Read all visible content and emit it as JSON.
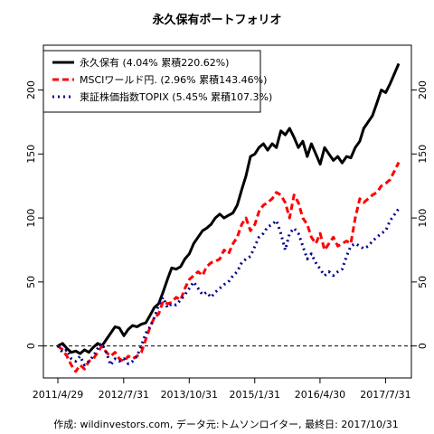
{
  "chart_data": {
    "type": "line",
    "title": "永久保有ポートフォリオ",
    "caption": "作成: wildinvestors.com, データ元:トムソンロイター, 最終日: 2017/10/31",
    "xlabel": "",
    "ylabel": "",
    "xlim": [
      "2011-04-29",
      "2017-10-31"
    ],
    "ylim": [
      -25,
      235
    ],
    "y_ticks": [
      0,
      50,
      100,
      150,
      200
    ],
    "y_tick_labels": [
      "0",
      "50",
      "100",
      "150",
      "200"
    ],
    "x_ticks": [
      "2011-04-29",
      "2012-07-31",
      "2013-10-31",
      "2015-01-31",
      "2016-04-30",
      "2017-07-31"
    ],
    "x_tick_labels": [
      "2011/4/29",
      "2012/7/31",
      "2013/10/31",
      "2015/1/31",
      "2016/4/30",
      "2017/7/31"
    ],
    "reference_line": 0,
    "grid": false,
    "legend_position": "top-left",
    "series": [
      {
        "name": "永久保有 (4.04% 累積220.62%)",
        "color": "#000000",
        "style": "solid",
        "points": [
          [
            "2011-04-29",
            0
          ],
          [
            "2011-06-01",
            2
          ],
          [
            "2011-07-01",
            -2
          ],
          [
            "2011-08-01",
            -5
          ],
          [
            "2011-09-01",
            -4
          ],
          [
            "2011-10-01",
            -6
          ],
          [
            "2011-11-01",
            -3
          ],
          [
            "2011-12-01",
            -5
          ],
          [
            "2012-01-01",
            -1
          ],
          [
            "2012-02-01",
            2
          ],
          [
            "2012-03-01",
            0
          ],
          [
            "2012-04-01",
            5
          ],
          [
            "2012-05-01",
            10
          ],
          [
            "2012-06-01",
            15
          ],
          [
            "2012-07-01",
            14
          ],
          [
            "2012-08-01",
            8
          ],
          [
            "2012-09-01",
            13
          ],
          [
            "2012-10-01",
            16
          ],
          [
            "2012-11-01",
            15
          ],
          [
            "2012-12-01",
            17
          ],
          [
            "2013-01-01",
            18
          ],
          [
            "2013-02-01",
            24
          ],
          [
            "2013-03-01",
            30
          ],
          [
            "2013-04-01",
            33
          ],
          [
            "2013-05-01",
            42
          ],
          [
            "2013-06-01",
            52
          ],
          [
            "2013-07-01",
            61
          ],
          [
            "2013-08-01",
            60
          ],
          [
            "2013-09-01",
            62
          ],
          [
            "2013-10-01",
            68
          ],
          [
            "2013-11-01",
            72
          ],
          [
            "2013-12-01",
            80
          ],
          [
            "2014-01-01",
            85
          ],
          [
            "2014-02-01",
            90
          ],
          [
            "2014-03-01",
            92
          ],
          [
            "2014-04-01",
            95
          ],
          [
            "2014-05-01",
            100
          ],
          [
            "2014-06-01",
            103
          ],
          [
            "2014-07-01",
            100
          ],
          [
            "2014-08-01",
            102
          ],
          [
            "2014-09-01",
            104
          ],
          [
            "2014-10-01",
            110
          ],
          [
            "2014-11-01",
            122
          ],
          [
            "2014-12-01",
            133
          ],
          [
            "2015-01-01",
            148
          ],
          [
            "2015-02-01",
            150
          ],
          [
            "2015-03-01",
            155
          ],
          [
            "2015-04-01",
            158
          ],
          [
            "2015-05-01",
            153
          ],
          [
            "2015-06-01",
            158
          ],
          [
            "2015-07-01",
            155
          ],
          [
            "2015-08-01",
            168
          ],
          [
            "2015-09-01",
            165
          ],
          [
            "2015-10-01",
            170
          ],
          [
            "2015-11-01",
            163
          ],
          [
            "2015-12-01",
            155
          ],
          [
            "2016-01-01",
            160
          ],
          [
            "2016-02-01",
            148
          ],
          [
            "2016-03-01",
            158
          ],
          [
            "2016-04-01",
            150
          ],
          [
            "2016-05-01",
            142
          ],
          [
            "2016-06-01",
            155
          ],
          [
            "2016-07-01",
            150
          ],
          [
            "2016-08-01",
            145
          ],
          [
            "2016-09-01",
            148
          ],
          [
            "2016-10-01",
            143
          ],
          [
            "2016-11-01",
            148
          ],
          [
            "2016-12-01",
            147
          ],
          [
            "2017-01-01",
            155
          ],
          [
            "2017-02-01",
            160
          ],
          [
            "2017-03-01",
            170
          ],
          [
            "2017-04-01",
            175
          ],
          [
            "2017-05-01",
            180
          ],
          [
            "2017-06-01",
            190
          ],
          [
            "2017-07-01",
            200
          ],
          [
            "2017-08-01",
            198
          ],
          [
            "2017-09-01",
            205
          ],
          [
            "2017-10-31",
            220.62
          ]
        ]
      },
      {
        "name": "MSCIワールド円. (2.96% 累積143.46%)",
        "color": "#ff0000",
        "style": "dashed",
        "points": [
          [
            "2011-04-29",
            0
          ],
          [
            "2011-06-01",
            -3
          ],
          [
            "2011-07-01",
            -8
          ],
          [
            "2011-08-01",
            -15
          ],
          [
            "2011-09-01",
            -20
          ],
          [
            "2011-10-01",
            -15
          ],
          [
            "2011-11-01",
            -18
          ],
          [
            "2011-12-01",
            -12
          ],
          [
            "2012-01-01",
            -10
          ],
          [
            "2012-02-01",
            -5
          ],
          [
            "2012-03-01",
            0
          ],
          [
            "2012-04-01",
            -5
          ],
          [
            "2012-05-01",
            -8
          ],
          [
            "2012-06-01",
            -5
          ],
          [
            "2012-07-01",
            -10
          ],
          [
            "2012-08-01",
            -12
          ],
          [
            "2012-09-01",
            -8
          ],
          [
            "2012-10-01",
            -10
          ],
          [
            "2012-11-01",
            -8
          ],
          [
            "2012-12-01",
            -5
          ],
          [
            "2013-01-01",
            5
          ],
          [
            "2013-02-01",
            15
          ],
          [
            "2013-03-01",
            22
          ],
          [
            "2013-04-01",
            25
          ],
          [
            "2013-05-01",
            35
          ],
          [
            "2013-06-01",
            33
          ],
          [
            "2013-07-01",
            34
          ],
          [
            "2013-08-01",
            38
          ],
          [
            "2013-09-01",
            36
          ],
          [
            "2013-10-01",
            45
          ],
          [
            "2013-11-01",
            52
          ],
          [
            "2013-12-01",
            55
          ],
          [
            "2014-01-01",
            58
          ],
          [
            "2014-02-01",
            55
          ],
          [
            "2014-03-01",
            62
          ],
          [
            "2014-04-01",
            65
          ],
          [
            "2014-05-01",
            66
          ],
          [
            "2014-06-01",
            68
          ],
          [
            "2014-07-01",
            75
          ],
          [
            "2014-08-01",
            72
          ],
          [
            "2014-09-01",
            80
          ],
          [
            "2014-10-01",
            85
          ],
          [
            "2014-11-01",
            95
          ],
          [
            "2014-12-01",
            100
          ],
          [
            "2015-01-01",
            90
          ],
          [
            "2015-02-01",
            95
          ],
          [
            "2015-03-01",
            105
          ],
          [
            "2015-04-01",
            110
          ],
          [
            "2015-05-01",
            112
          ],
          [
            "2015-06-01",
            115
          ],
          [
            "2015-07-01",
            120
          ],
          [
            "2015-08-01",
            118
          ],
          [
            "2015-09-01",
            112
          ],
          [
            "2015-10-01",
            100
          ],
          [
            "2015-11-01",
            118
          ],
          [
            "2015-12-01",
            112
          ],
          [
            "2016-01-01",
            100
          ],
          [
            "2016-02-01",
            95
          ],
          [
            "2016-03-01",
            85
          ],
          [
            "2016-04-01",
            80
          ],
          [
            "2016-05-01",
            88
          ],
          [
            "2016-06-01",
            75
          ],
          [
            "2016-07-01",
            80
          ],
          [
            "2016-08-01",
            85
          ],
          [
            "2016-09-01",
            78
          ],
          [
            "2016-10-01",
            80
          ],
          [
            "2016-11-01",
            82
          ],
          [
            "2016-12-01",
            80
          ],
          [
            "2017-01-01",
            100
          ],
          [
            "2017-02-01",
            115
          ],
          [
            "2017-03-01",
            112
          ],
          [
            "2017-04-01",
            115
          ],
          [
            "2017-05-01",
            118
          ],
          [
            "2017-06-01",
            120
          ],
          [
            "2017-07-01",
            125
          ],
          [
            "2017-08-01",
            127
          ],
          [
            "2017-09-01",
            130
          ],
          [
            "2017-10-31",
            143.46
          ]
        ]
      },
      {
        "name": "東証株価指数TOPIX (5.45% 累積107.3%)",
        "color": "#00008b",
        "style": "dotted",
        "points": [
          [
            "2011-04-29",
            0
          ],
          [
            "2011-06-01",
            -5
          ],
          [
            "2011-07-01",
            -3
          ],
          [
            "2011-08-01",
            -10
          ],
          [
            "2011-09-01",
            -12
          ],
          [
            "2011-10-01",
            -8
          ],
          [
            "2011-11-01",
            -15
          ],
          [
            "2011-12-01",
            -12
          ],
          [
            "2012-01-01",
            -8
          ],
          [
            "2012-02-01",
            -2
          ],
          [
            "2012-03-01",
            2
          ],
          [
            "2012-04-01",
            -5
          ],
          [
            "2012-05-01",
            -15
          ],
          [
            "2012-06-01",
            -10
          ],
          [
            "2012-07-01",
            -12
          ],
          [
            "2012-08-01",
            -10
          ],
          [
            "2012-09-01",
            -14
          ],
          [
            "2012-10-01",
            -12
          ],
          [
            "2012-11-01",
            -8
          ],
          [
            "2012-12-01",
            0
          ],
          [
            "2013-01-01",
            10
          ],
          [
            "2013-02-01",
            15
          ],
          [
            "2013-03-01",
            22
          ],
          [
            "2013-04-01",
            32
          ],
          [
            "2013-05-01",
            38
          ],
          [
            "2013-06-01",
            30
          ],
          [
            "2013-07-01",
            33
          ],
          [
            "2013-08-01",
            32
          ],
          [
            "2013-09-01",
            36
          ],
          [
            "2013-10-01",
            40
          ],
          [
            "2013-11-01",
            45
          ],
          [
            "2013-12-01",
            50
          ],
          [
            "2014-01-01",
            45
          ],
          [
            "2014-02-01",
            40
          ],
          [
            "2014-03-01",
            42
          ],
          [
            "2014-04-01",
            38
          ],
          [
            "2014-05-01",
            42
          ],
          [
            "2014-06-01",
            45
          ],
          [
            "2014-07-01",
            48
          ],
          [
            "2014-08-01",
            50
          ],
          [
            "2014-09-01",
            55
          ],
          [
            "2014-10-01",
            58
          ],
          [
            "2014-11-01",
            65
          ],
          [
            "2014-12-01",
            68
          ],
          [
            "2015-01-01",
            70
          ],
          [
            "2015-02-01",
            78
          ],
          [
            "2015-03-01",
            85
          ],
          [
            "2015-04-01",
            88
          ],
          [
            "2015-05-01",
            93
          ],
          [
            "2015-06-01",
            95
          ],
          [
            "2015-07-01",
            98
          ],
          [
            "2015-08-01",
            88
          ],
          [
            "2015-09-01",
            75
          ],
          [
            "2015-10-01",
            88
          ],
          [
            "2015-11-01",
            92
          ],
          [
            "2015-12-01",
            88
          ],
          [
            "2016-01-01",
            78
          ],
          [
            "2016-02-01",
            68
          ],
          [
            "2016-03-01",
            72
          ],
          [
            "2016-04-01",
            65
          ],
          [
            "2016-05-01",
            60
          ],
          [
            "2016-06-01",
            55
          ],
          [
            "2016-07-01",
            58
          ],
          [
            "2016-08-01",
            55
          ],
          [
            "2016-09-01",
            58
          ],
          [
            "2016-10-01",
            60
          ],
          [
            "2016-11-01",
            70
          ],
          [
            "2016-12-01",
            78
          ],
          [
            "2017-01-01",
            80
          ],
          [
            "2017-02-01",
            78
          ],
          [
            "2017-03-01",
            76
          ],
          [
            "2017-04-01",
            78
          ],
          [
            "2017-05-01",
            82
          ],
          [
            "2017-06-01",
            85
          ],
          [
            "2017-07-01",
            88
          ],
          [
            "2017-08-01",
            90
          ],
          [
            "2017-09-01",
            98
          ],
          [
            "2017-10-31",
            107.3
          ]
        ]
      }
    ]
  }
}
